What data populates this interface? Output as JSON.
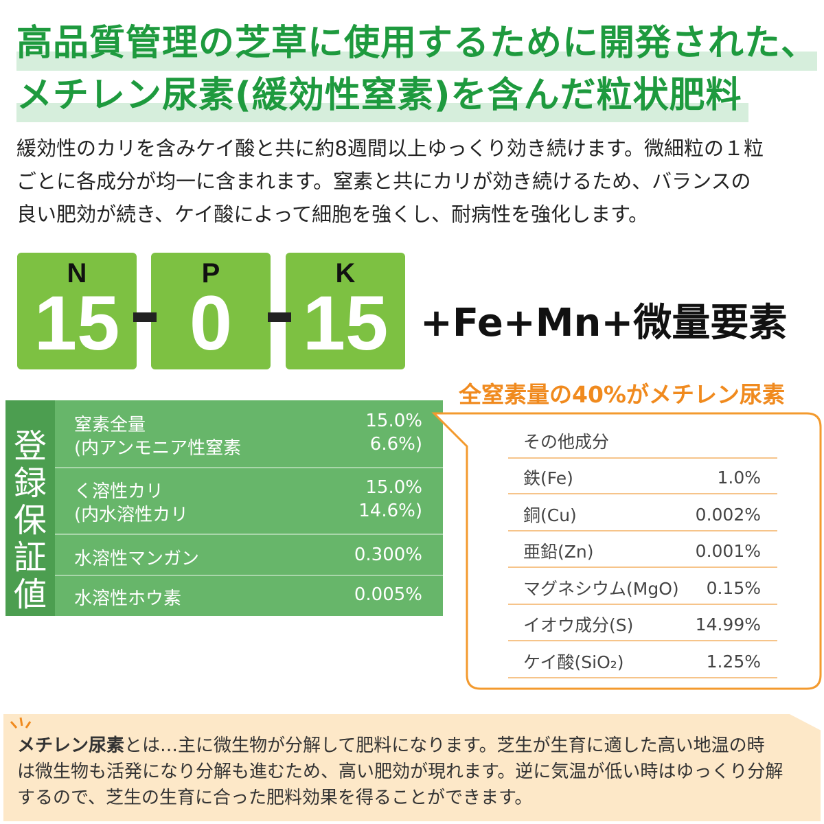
{
  "title": {
    "lines": [
      "高品質管理の芝草に使用するために開発された、",
      "メチレン尿素(緩効性窒素)を含んだ粒状肥料"
    ]
  },
  "description": {
    "lines": [
      "緩効性のカリを含みケイ酸と共に約8週間以上ゆっくり効き続けます。微細粒の１粒",
      "ごとに各成分が均一に含まれます。窒素と共にカリが効き続けるため、バランスの",
      "良い肥効が続き、ケイ酸によって細胞を強くし、耐病性を強化します。"
    ]
  },
  "npk": {
    "items": [
      {
        "label": "N",
        "value": "15"
      },
      {
        "label": "P",
        "value": "0"
      },
      {
        "label": "K",
        "value": "15"
      }
    ],
    "extra": "+Fe+Mn+微量要素"
  },
  "callout": "全窒素量の40%がメチレン尿素",
  "guarantee": {
    "heading": "登録保証値",
    "rows": [
      [
        {
          "name": "窒素全量",
          "value": "15.0%"
        },
        {
          "name": "(内アンモニア性窒素",
          "value": "6.6%)"
        }
      ],
      [
        {
          "name": "く溶性カリ",
          "value": "15.0%"
        },
        {
          "name": "(内水溶性カリ",
          "value": "14.6%)"
        }
      ],
      [
        {
          "name": "水溶性マンガン",
          "value": "0.300%"
        }
      ],
      [
        {
          "name": "水溶性ホウ素",
          "value": "0.005%"
        }
      ]
    ]
  },
  "other": {
    "heading": "その他成分",
    "rows": [
      {
        "name": "鉄(Fe)",
        "value": "1.0%"
      },
      {
        "name": "銅(Cu)",
        "value": "0.002%"
      },
      {
        "name": "亜鉛(Zn)",
        "value": "0.001%"
      },
      {
        "name": "マグネシウム(MgO)",
        "value": "0.15%"
      },
      {
        "name": "イオウ成分(S)",
        "value": "14.99%"
      },
      {
        "name": "ケイ酸(SiO₂)",
        "value": "1.25%"
      }
    ]
  },
  "note": {
    "term": "メチレン尿素",
    "lines": [
      "とは…主に微生物が分解して肥料になります。芝生が生育に適した高い地温の時",
      "は微生物も活発になり分解も進むため、高い肥効が現れます。逆に気温が低い時はゆっくり分解",
      "するので、芝生の生育に合った肥料効果を得ることができます。"
    ]
  }
}
